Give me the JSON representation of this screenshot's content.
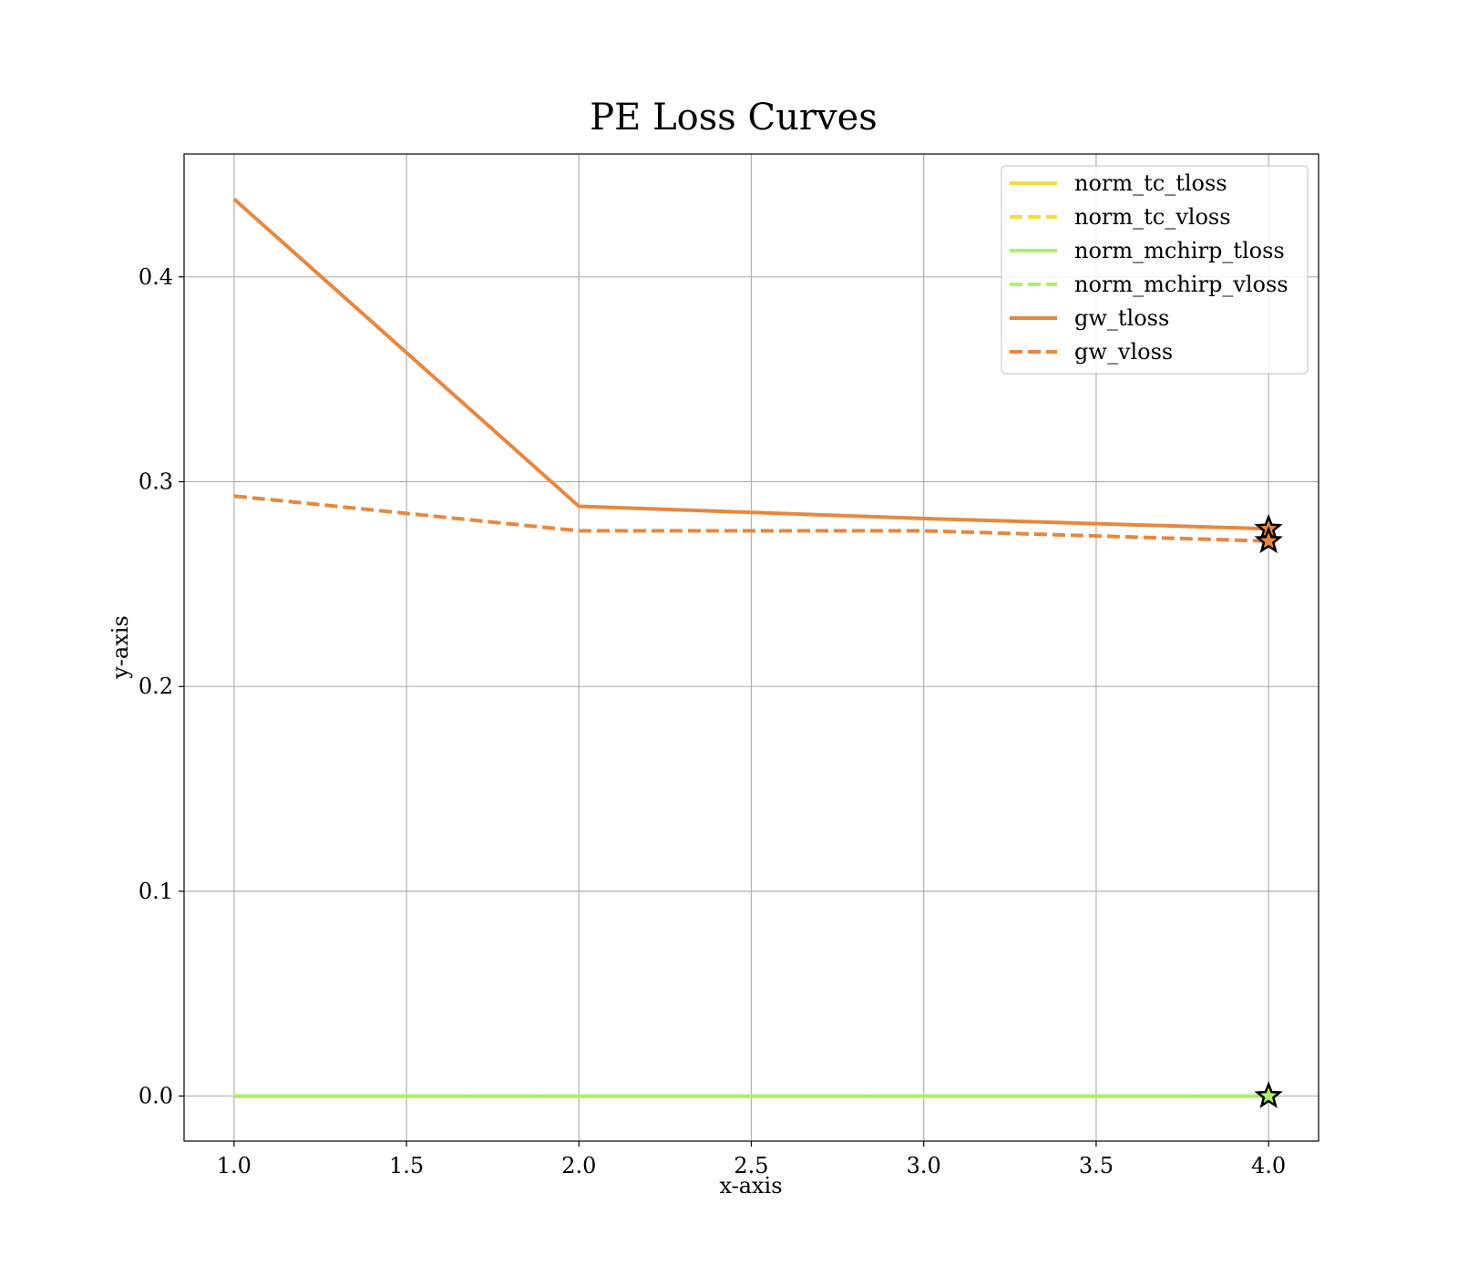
{
  "chart_data": {
    "type": "line",
    "title": "PE Loss Curves",
    "xlabel": "x-axis",
    "ylabel": "y-axis",
    "xlim": [
      0.855,
      4.145
    ],
    "ylim": [
      -0.022,
      0.46
    ],
    "x_ticks": [
      1.0,
      1.5,
      2.0,
      2.5,
      3.0,
      3.5,
      4.0
    ],
    "x_tick_labels": [
      "1.0",
      "1.5",
      "2.0",
      "2.5",
      "3.0",
      "3.5",
      "4.0"
    ],
    "y_ticks": [
      0.0,
      0.1,
      0.2,
      0.3,
      0.4
    ],
    "y_tick_labels": [
      "0.0",
      "0.1",
      "0.2",
      "0.3",
      "0.4"
    ],
    "grid": true,
    "legend_position": "top-right",
    "x": [
      1,
      2,
      3,
      4
    ],
    "series": [
      {
        "name": "norm_tc_tloss",
        "values": [
          0.0,
          0.0,
          0.0,
          0.0
        ],
        "color": "#f2dc3b",
        "dashed": false
      },
      {
        "name": "norm_tc_vloss",
        "values": [
          0.0,
          0.0,
          0.0,
          0.0
        ],
        "color": "#f2dc3b",
        "dashed": true
      },
      {
        "name": "norm_mchirp_tloss",
        "values": [
          0.0,
          0.0,
          0.0,
          0.0
        ],
        "color": "#a8f26a",
        "dashed": false
      },
      {
        "name": "norm_mchirp_vloss",
        "values": [
          0.0,
          0.0,
          0.0,
          0.0
        ],
        "color": "#a8f26a",
        "dashed": true
      },
      {
        "name": "gw_tloss",
        "values": [
          0.438,
          0.288,
          0.282,
          0.277
        ],
        "color": "#e8873d",
        "dashed": false
      },
      {
        "name": "gw_vloss",
        "values": [
          0.293,
          0.276,
          0.276,
          0.271
        ],
        "color": "#e8873d",
        "dashed": true
      }
    ],
    "markers": [
      {
        "series": "gw_tloss",
        "x": 4,
        "y": 0.277,
        "symbol": "star"
      },
      {
        "series": "gw_vloss",
        "x": 4,
        "y": 0.271,
        "symbol": "star"
      },
      {
        "series": "norm_mchirp_tloss",
        "x": 4,
        "y": 0.0,
        "symbol": "star"
      }
    ]
  }
}
